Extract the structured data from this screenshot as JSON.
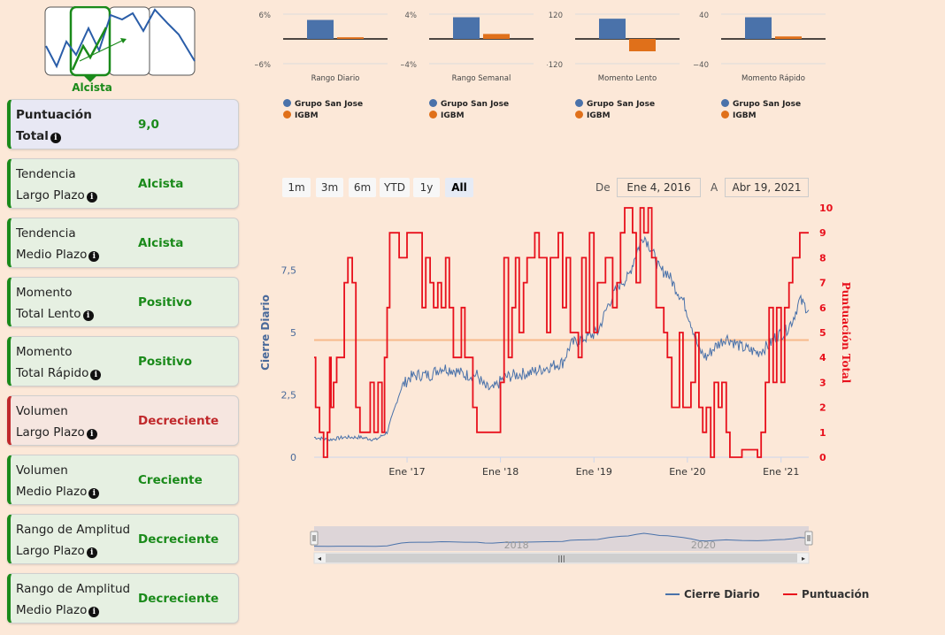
{
  "logo": {
    "label": "Alcista"
  },
  "cards": [
    {
      "line1": "Puntuación",
      "line2": "Total",
      "value": "9,0",
      "kind": "score"
    },
    {
      "line1": "Tendencia",
      "line2": "Largo Plazo",
      "value": "Alcista",
      "kind": "pos"
    },
    {
      "line1": "Tendencia",
      "line2": "Medio Plazo",
      "value": "Alcista",
      "kind": "pos"
    },
    {
      "line1": "Momento",
      "line2": "Total Lento",
      "value": "Positivo",
      "kind": "pos"
    },
    {
      "line1": "Momento",
      "line2": "Total Rápido",
      "value": "Positivo",
      "kind": "pos"
    },
    {
      "line1": "Volumen",
      "line2": "Largo Plazo",
      "value": "Decreciente",
      "kind": "neg"
    },
    {
      "line1": "Volumen",
      "line2": "Medio Plazo",
      "value": "Creciente",
      "kind": "pos"
    },
    {
      "line1": "Rango de Amplitud",
      "line2": "Largo Plazo",
      "value": "Decreciente",
      "kind": "pos"
    },
    {
      "line1": "Rango de Amplitud",
      "line2": "Medio Plazo",
      "value": "Decreciente",
      "kind": "pos"
    }
  ],
  "info_icon": "info-circle-icon",
  "colors": {
    "positive": "#1a8a1a",
    "negative": "#c0282b",
    "series_blue": "#4a72aa",
    "series_orange": "#e0701a",
    "score_red": "#e8101c",
    "plotband": "#f7b98a"
  },
  "range_selector": {
    "buttons": [
      "1m",
      "3m",
      "6m",
      "YTD",
      "1y",
      "All"
    ],
    "selected": "All",
    "from_label": "De",
    "from_value": "Ene 4, 2016",
    "to_label": "A",
    "to_value": "Abr 19, 2021"
  },
  "legend": {
    "series": [
      "Cierre Diario",
      "Puntuación"
    ]
  },
  "chart_data": [
    {
      "type": "bar",
      "xlabel": "Rango Diario",
      "ylim": [
        -6,
        6
      ],
      "ytick_labels": [
        "6%",
        "−6%"
      ],
      "series": [
        {
          "name": "Grupo San Jose",
          "values": [
            4.6
          ]
        },
        {
          "name": "IGBM",
          "values": [
            0.4
          ]
        }
      ]
    },
    {
      "type": "bar",
      "xlabel": "Rango Semanal",
      "ylim": [
        -4,
        4
      ],
      "ytick_labels": [
        "4%",
        "−4%"
      ],
      "series": [
        {
          "name": "Grupo San Jose",
          "values": [
            3.5
          ]
        },
        {
          "name": "IGBM",
          "values": [
            0.8
          ]
        }
      ]
    },
    {
      "type": "bar",
      "xlabel": "Momento Lento",
      "ylim": [
        -120,
        120
      ],
      "ytick_labels": [
        "120",
        "−120"
      ],
      "series": [
        {
          "name": "Grupo San Jose",
          "values": [
            98
          ]
        },
        {
          "name": "IGBM",
          "values": [
            -60
          ]
        }
      ]
    },
    {
      "type": "bar",
      "xlabel": "Momento Rápido",
      "ylim": [
        -40,
        40
      ],
      "ytick_labels": [
        "40",
        "−40"
      ],
      "series": [
        {
          "name": "Grupo San Jose",
          "values": [
            35
          ]
        },
        {
          "name": "IGBM",
          "values": [
            4
          ]
        }
      ]
    },
    {
      "type": "line",
      "y_left_label": "Cierre Diario",
      "y_right_label": "Puntuación Total",
      "y_left_ticks": [
        "0",
        "2,5",
        "5",
        "7,5"
      ],
      "y_left_range": [
        0,
        10
      ],
      "y_right_range": [
        0,
        10
      ],
      "y_right_ticks": [
        "0",
        "1",
        "2",
        "3",
        "4",
        "5",
        "6",
        "7",
        "8",
        "9",
        "10"
      ],
      "x_ticks": [
        "Ene '17",
        "Ene '18",
        "Ene '19",
        "Ene '20",
        "Ene '21"
      ],
      "x_range": [
        "2016-01-04",
        "2021-04-19"
      ],
      "plot_band_y": 4.7,
      "navigator_labels": [
        "2018",
        "2020"
      ],
      "series": [
        {
          "name": "Cierre Diario",
          "axis": "left",
          "points": [
            [
              "2016-01-04",
              0.8
            ],
            [
              "2016-03-01",
              0.7
            ],
            [
              "2016-05-01",
              0.8
            ],
            [
              "2016-07-01",
              0.8
            ],
            [
              "2016-09-01",
              0.7
            ],
            [
              "2016-10-15",
              1.0
            ],
            [
              "2016-11-15",
              2.0
            ],
            [
              "2016-12-10",
              2.8
            ],
            [
              "2017-01-10",
              3.2
            ],
            [
              "2017-02-15",
              3.3
            ],
            [
              "2017-04-01",
              3.3
            ],
            [
              "2017-05-15",
              3.6
            ],
            [
              "2017-07-01",
              3.5
            ],
            [
              "2017-08-15",
              3.3
            ],
            [
              "2017-10-01",
              3.3
            ],
            [
              "2017-11-01",
              2.8
            ],
            [
              "2017-12-01",
              2.7
            ],
            [
              "2018-01-15",
              3.2
            ],
            [
              "2018-03-01",
              3.3
            ],
            [
              "2018-05-01",
              3.4
            ],
            [
              "2018-07-01",
              3.6
            ],
            [
              "2018-09-01",
              3.8
            ],
            [
              "2018-10-01",
              4.5
            ],
            [
              "2018-11-01",
              4.7
            ],
            [
              "2018-12-01",
              4.8
            ],
            [
              "2019-01-15",
              5.0
            ],
            [
              "2019-03-01",
              6.2
            ],
            [
              "2019-04-15",
              7.0
            ],
            [
              "2019-05-15",
              7.2
            ],
            [
              "2019-06-15",
              8.2
            ],
            [
              "2019-07-15",
              8.9
            ],
            [
              "2019-08-15",
              8.3
            ],
            [
              "2019-09-15",
              7.5
            ],
            [
              "2019-10-15",
              7.4
            ],
            [
              "2019-11-15",
              6.8
            ],
            [
              "2019-12-15",
              6.3
            ],
            [
              "2020-01-15",
              5.4
            ],
            [
              "2020-02-15",
              4.3
            ],
            [
              "2020-03-15",
              4.0
            ],
            [
              "2020-04-15",
              4.4
            ],
            [
              "2020-06-01",
              4.8
            ],
            [
              "2020-08-01",
              4.4
            ],
            [
              "2020-10-01",
              4.2
            ],
            [
              "2020-11-15",
              4.5
            ],
            [
              "2020-12-15",
              4.9
            ],
            [
              "2021-01-15",
              5.0
            ],
            [
              "2021-02-15",
              5.5
            ],
            [
              "2021-03-15",
              6.3
            ],
            [
              "2021-04-19",
              5.9
            ]
          ]
        },
        {
          "name": "Puntuación",
          "axis": "right",
          "points": [
            [
              "2016-01-04",
              4
            ],
            [
              "2016-01-10",
              2
            ],
            [
              "2016-01-25",
              1
            ],
            [
              "2016-02-10",
              0
            ],
            [
              "2016-02-25",
              1
            ],
            [
              "2016-03-05",
              4
            ],
            [
              "2016-03-10",
              2
            ],
            [
              "2016-03-20",
              3
            ],
            [
              "2016-04-01",
              4
            ],
            [
              "2016-05-01",
              7
            ],
            [
              "2016-05-15",
              8
            ],
            [
              "2016-06-01",
              7
            ],
            [
              "2016-06-15",
              2
            ],
            [
              "2016-07-01",
              1
            ],
            [
              "2016-08-10",
              3
            ],
            [
              "2016-08-25",
              1
            ],
            [
              "2016-09-10",
              3
            ],
            [
              "2016-09-25",
              1
            ],
            [
              "2016-10-05",
              4
            ],
            [
              "2016-10-15",
              6
            ],
            [
              "2016-10-25",
              9
            ],
            [
              "2016-12-01",
              8
            ],
            [
              "2017-01-01",
              9
            ],
            [
              "2017-02-01",
              9
            ],
            [
              "2017-03-01",
              6
            ],
            [
              "2017-03-15",
              8
            ],
            [
              "2017-04-01",
              7
            ],
            [
              "2017-04-15",
              6
            ],
            [
              "2017-05-01",
              7
            ],
            [
              "2017-05-15",
              6
            ],
            [
              "2017-06-01",
              8
            ],
            [
              "2017-06-15",
              6
            ],
            [
              "2017-07-01",
              4
            ],
            [
              "2017-08-01",
              6
            ],
            [
              "2017-08-15",
              4
            ],
            [
              "2017-09-15",
              2
            ],
            [
              "2017-10-01",
              1
            ],
            [
              "2017-11-01",
              1
            ],
            [
              "2017-12-10",
              1
            ],
            [
              "2018-01-01",
              3
            ],
            [
              "2018-01-15",
              8
            ],
            [
              "2018-02-01",
              4
            ],
            [
              "2018-02-15",
              6
            ],
            [
              "2018-03-01",
              8
            ],
            [
              "2018-03-15",
              5
            ],
            [
              "2018-04-01",
              7
            ],
            [
              "2018-04-15",
              8
            ],
            [
              "2018-05-15",
              9
            ],
            [
              "2018-06-01",
              8
            ],
            [
              "2018-07-01",
              5
            ],
            [
              "2018-07-15",
              8
            ],
            [
              "2018-08-15",
              9
            ],
            [
              "2018-09-01",
              6
            ],
            [
              "2018-09-15",
              8
            ],
            [
              "2018-10-01",
              5
            ],
            [
              "2018-11-01",
              4
            ],
            [
              "2018-11-15",
              8
            ],
            [
              "2018-12-01",
              5
            ],
            [
              "2018-12-15",
              9
            ],
            [
              "2019-01-01",
              5
            ],
            [
              "2019-01-15",
              7
            ],
            [
              "2019-02-15",
              8
            ],
            [
              "2019-03-15",
              6
            ],
            [
              "2019-04-01",
              7
            ],
            [
              "2019-04-15",
              9
            ],
            [
              "2019-05-01",
              10
            ],
            [
              "2019-06-01",
              9
            ],
            [
              "2019-06-15",
              7
            ],
            [
              "2019-07-01",
              10
            ],
            [
              "2019-07-15",
              9
            ],
            [
              "2019-08-01",
              10
            ],
            [
              "2019-08-15",
              8
            ],
            [
              "2019-09-01",
              6
            ],
            [
              "2019-10-01",
              5
            ],
            [
              "2019-10-15",
              4
            ],
            [
              "2019-11-01",
              2
            ],
            [
              "2019-11-15",
              2
            ],
            [
              "2019-12-01",
              5
            ],
            [
              "2019-12-15",
              2
            ],
            [
              "2020-01-01",
              2
            ],
            [
              "2020-01-15",
              3
            ],
            [
              "2020-02-01",
              5
            ],
            [
              "2020-02-15",
              2
            ],
            [
              "2020-03-01",
              1
            ],
            [
              "2020-03-15",
              2
            ],
            [
              "2020-04-01",
              0
            ],
            [
              "2020-04-15",
              3
            ],
            [
              "2020-05-01",
              2
            ],
            [
              "2020-05-15",
              3
            ],
            [
              "2020-06-01",
              1
            ],
            [
              "2020-06-15",
              0
            ],
            [
              "2020-07-01",
              0
            ],
            [
              "2020-07-15",
              0
            ],
            [
              "2020-08-01",
              0.3
            ],
            [
              "2020-09-01",
              0.3
            ],
            [
              "2020-10-01",
              0
            ],
            [
              "2020-10-15",
              1
            ],
            [
              "2020-11-01",
              3
            ],
            [
              "2020-11-15",
              6
            ],
            [
              "2020-12-01",
              3
            ],
            [
              "2020-12-15",
              6
            ],
            [
              "2021-01-01",
              3
            ],
            [
              "2021-01-15",
              6
            ],
            [
              "2021-02-01",
              7
            ],
            [
              "2021-02-15",
              8
            ],
            [
              "2021-03-15",
              9
            ],
            [
              "2021-04-19",
              9
            ]
          ]
        }
      ]
    }
  ]
}
